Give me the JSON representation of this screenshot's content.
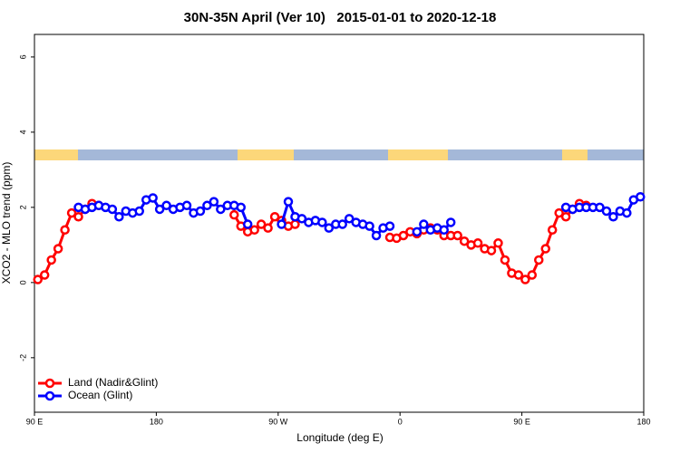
{
  "chart_data": {
    "type": "line",
    "title": "30N-35N April (Ver 10)   2015-01-01 to 2020-12-18",
    "x_label": "Longitude (deg E)",
    "y_label": "XCO2 - MLO trend (ppm)",
    "xlim": [
      90,
      540
    ],
    "xticks": [
      {
        "value": 90,
        "label": "90 E"
      },
      {
        "value": 180,
        "label": "180"
      },
      {
        "value": 270,
        "label": "90 W"
      },
      {
        "value": 360,
        "label": "0"
      },
      {
        "value": 450,
        "label": "90 E"
      },
      {
        "value": 540,
        "label": "180"
      }
    ],
    "ylim": [
      -3.45,
      6.6
    ],
    "yticks": [
      -2,
      0,
      2,
      4,
      6
    ],
    "grid": false,
    "legend": "bottom-left",
    "x": [
      92.5,
      97.5,
      102.5,
      107.5,
      112.5,
      117.5,
      122.5,
      127.5,
      132.5,
      137.5,
      142.5,
      147.5,
      152.5,
      157.5,
      162.5,
      167.5,
      172.5,
      177.5,
      182.5,
      187.5,
      192.5,
      197.5,
      202.5,
      207.5,
      212.5,
      217.5,
      222.5,
      227.5,
      232.5,
      237.5,
      242.5,
      247.5,
      252.5,
      257.5,
      262.5,
      267.5,
      272.5,
      277.5,
      282.5,
      287.5,
      292.5,
      297.5,
      302.5,
      307.5,
      312.5,
      317.5,
      322.5,
      327.5,
      332.5,
      337.5,
      342.5,
      347.5,
      352.5,
      357.5,
      362.5,
      367.5,
      372.5,
      377.5,
      382.5,
      387.5,
      392.5,
      397.5,
      402.5,
      407.5,
      412.5,
      417.5,
      422.5,
      427.5,
      432.5,
      437.5,
      442.5,
      447.5,
      452.5,
      457.5,
      462.5,
      467.5,
      472.5,
      477.5,
      482.5,
      487.5,
      492.5,
      497.5,
      502.5,
      507.5,
      512.5,
      517.5,
      522.5,
      527.5,
      532.5,
      537.5
    ],
    "series": [
      {
        "name": "Land (Nadir&Glint)",
        "color": "#ff0000",
        "values": [
          0.08,
          0.2,
          0.6,
          0.9,
          1.4,
          1.85,
          1.75,
          1.95,
          2.1,
          2.05,
          null,
          null,
          null,
          null,
          null,
          null,
          null,
          null,
          null,
          null,
          null,
          null,
          null,
          null,
          null,
          null,
          null,
          null,
          null,
          1.8,
          1.5,
          1.35,
          1.4,
          1.55,
          1.45,
          1.75,
          1.65,
          1.5,
          1.55,
          null,
          null,
          null,
          null,
          null,
          null,
          null,
          null,
          null,
          null,
          null,
          null,
          null,
          1.2,
          1.18,
          1.25,
          1.35,
          1.3,
          1.4,
          1.45,
          1.4,
          1.25,
          1.25,
          1.25,
          1.1,
          1.0,
          1.05,
          0.9,
          0.85,
          1.05,
          0.6,
          0.25,
          0.2,
          0.08,
          0.2,
          0.6,
          0.9,
          1.4,
          1.85,
          1.75,
          1.95,
          2.1,
          2.05,
          null,
          null,
          null,
          null,
          null,
          null,
          null,
          null
        ]
      },
      {
        "name": "Ocean (Glint)",
        "color": "#0000ff",
        "values": [
          null,
          null,
          null,
          null,
          null,
          null,
          2.0,
          1.95,
          2.0,
          2.05,
          2.0,
          1.95,
          1.75,
          1.9,
          1.85,
          1.9,
          2.2,
          2.25,
          1.95,
          2.05,
          1.95,
          2.0,
          2.05,
          1.85,
          1.9,
          2.05,
          2.15,
          1.95,
          2.05,
          2.05,
          2.0,
          1.55,
          null,
          null,
          null,
          null,
          1.55,
          2.15,
          1.75,
          1.7,
          1.6,
          1.65,
          1.6,
          1.45,
          1.55,
          1.55,
          1.7,
          1.6,
          1.55,
          1.5,
          1.25,
          1.45,
          1.5,
          null,
          null,
          null,
          1.35,
          1.55,
          1.4,
          1.45,
          1.4,
          1.6,
          null,
          null,
          null,
          null,
          null,
          null,
          null,
          null,
          null,
          null,
          null,
          null,
          null,
          null,
          null,
          null,
          2.0,
          1.95,
          2.0,
          2.0,
          2.0,
          2.0,
          1.9,
          1.75,
          1.9,
          1.85,
          2.2,
          2.28
        ]
      }
    ]
  }
}
